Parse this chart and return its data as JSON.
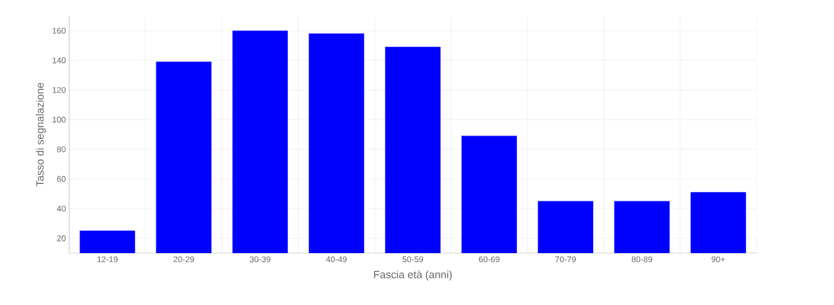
{
  "chart_data": {
    "type": "bar",
    "xlabel": "Fascia età (anni)",
    "ylabel": "Tasso di segnalazione",
    "categories": [
      "12-19",
      "20-29",
      "30-39",
      "40-49",
      "50-59",
      "60-69",
      "70-79",
      "80-89",
      "90+"
    ],
    "values": [
      25,
      139,
      160,
      158,
      149,
      89,
      45,
      45,
      51
    ],
    "color": "#0000ff",
    "ylim": [
      10,
      170
    ],
    "yticks": [
      20,
      40,
      60,
      80,
      100,
      120,
      140,
      160
    ],
    "grid": true
  }
}
